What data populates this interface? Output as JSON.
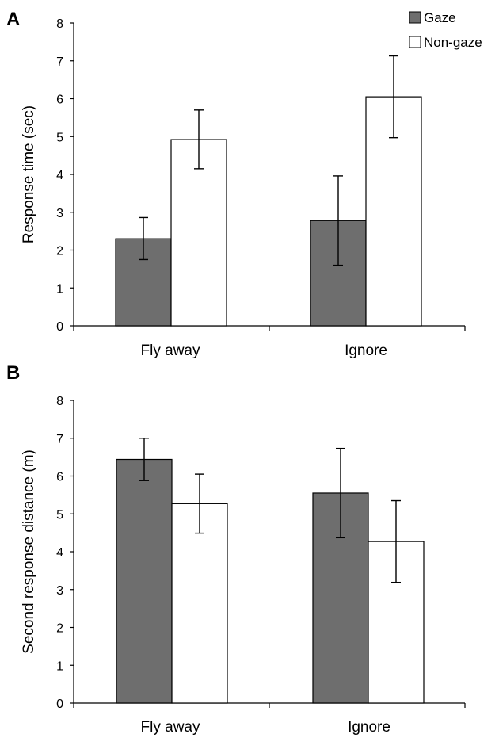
{
  "legend": [
    {
      "label": "Gaze",
      "color": "#6e6e6e"
    },
    {
      "label": "Non-gaze",
      "color": "#ffffff"
    }
  ],
  "chart_data": [
    {
      "panel": "A",
      "type": "bar",
      "ylabel": "Response time (sec)",
      "ylim": [
        0,
        8
      ],
      "yticks": [
        "0",
        "1",
        "2",
        "3",
        "4",
        "5",
        "6",
        "7",
        "8"
      ],
      "categories": [
        "Fly away",
        "Ignore"
      ],
      "legend_position": "top-right",
      "series": [
        {
          "name": "Gaze",
          "color": "#6e6e6e",
          "values": [
            2.3,
            2.78
          ],
          "error_low": [
            1.75,
            1.6
          ],
          "error_high": [
            2.86,
            3.96
          ]
        },
        {
          "name": "Non-gaze",
          "color": "#ffffff",
          "values": [
            4.92,
            6.05
          ],
          "error_low": [
            4.15,
            4.97
          ],
          "error_high": [
            5.7,
            7.13
          ]
        }
      ]
    },
    {
      "panel": "B",
      "type": "bar",
      "ylabel": "Second response distance (m)",
      "ylim": [
        0,
        8
      ],
      "yticks": [
        "0",
        "1",
        "2",
        "3",
        "4",
        "5",
        "6",
        "7",
        "8"
      ],
      "categories": [
        "Fly away",
        "Ignore"
      ],
      "series": [
        {
          "name": "Gaze",
          "color": "#6e6e6e",
          "values": [
            6.44,
            5.55
          ],
          "error_low": [
            5.88,
            4.37
          ],
          "error_high": [
            7.0,
            6.73
          ]
        },
        {
          "name": "Non-gaze",
          "color": "#ffffff",
          "values": [
            5.27,
            4.27
          ],
          "error_low": [
            4.49,
            3.19
          ],
          "error_high": [
            6.05,
            5.35
          ]
        }
      ]
    }
  ]
}
